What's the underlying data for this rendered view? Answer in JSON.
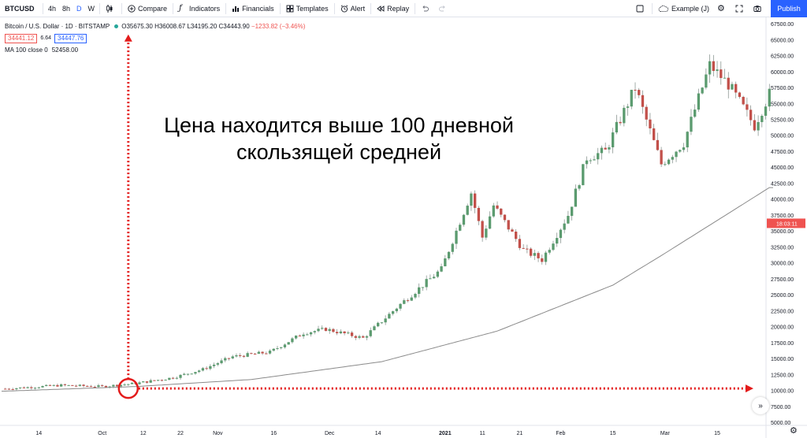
{
  "toolbar": {
    "symbol": "BTCUSD",
    "timeframes": [
      {
        "label": "4h",
        "active": false
      },
      {
        "label": "8h",
        "active": false
      },
      {
        "label": "D",
        "active": true
      },
      {
        "label": "W",
        "active": false
      }
    ],
    "compare": "Compare",
    "indicators": "Indicators",
    "financials": "Financials",
    "templates": "Templates",
    "alert": "Alert",
    "replay": "Replay",
    "layout_name": "Example (J)",
    "publish": "Publish"
  },
  "legend": {
    "title": "Bitcoin / U.S. Dollar · 1D · BITSTAMP",
    "o_label": "O",
    "o": "35675.30",
    "h_label": "H",
    "h": "36008.67",
    "l_label": "L",
    "l": "34195.20",
    "c_label": "C",
    "c": "34443.90",
    "change": "−1233.82 (−3.46%)",
    "bid": "34441.12",
    "spread": "6.64",
    "ask": "34447.76",
    "ma_label": "MA 100 close 0",
    "ma_value": "52458.00"
  },
  "annotation": {
    "line1": "Цена находится выше 100 дневной",
    "line2": "скользящей средней"
  },
  "colors": {
    "up": "#26a69a",
    "down": "#ef5350",
    "up_body": "#5b9b6f",
    "down_body": "#c2504a",
    "ma": "#8a8a8a",
    "arrow": "#e31b1b",
    "price_tag": "#ef5350"
  },
  "icons": {
    "bar_style": "candles-icon",
    "compare": "plus-circle-icon",
    "indicators": "fx-icon",
    "financials": "bar-chart-icon",
    "templates": "grid-icon",
    "alert": "alarm-clock-icon",
    "replay": "rewind-icon",
    "undo": "undo-icon",
    "redo": "redo-icon",
    "layout": "square-icon",
    "cloud": "cloud-icon",
    "settings": "gear-icon",
    "fullscreen": "fullscreen-icon",
    "snapshot": "camera-icon"
  },
  "chart_data": {
    "type": "candlestick",
    "title": "Bitcoin / U.S. Dollar · 1D · BITSTAMP",
    "y_ticks": [
      "67500.00",
      "65000.00",
      "62500.00",
      "60000.00",
      "57500.00",
      "55000.00",
      "52500.00",
      "50000.00",
      "47500.00",
      "45000.00",
      "42500.00",
      "40000.00",
      "37500.00",
      "35000.00",
      "32500.00",
      "30000.00",
      "27500.00",
      "25000.00",
      "22500.00",
      "20000.00",
      "17500.00",
      "15000.00",
      "12500.00",
      "10000.00",
      "7500.00",
      "5000.00"
    ],
    "ylim": [
      5000,
      68500
    ],
    "x_ticks": [
      {
        "label": "14",
        "bold": false
      },
      {
        "label": "Oct",
        "bold": false
      },
      {
        "label": "12",
        "bold": false
      },
      {
        "label": "22",
        "bold": false
      },
      {
        "label": "Nov",
        "bold": false
      },
      {
        "label": "16",
        "bold": false
      },
      {
        "label": "Dec",
        "bold": false
      },
      {
        "label": "14",
        "bold": false
      },
      {
        "label": "2021",
        "bold": true
      },
      {
        "label": "11",
        "bold": false
      },
      {
        "label": "21",
        "bold": false
      },
      {
        "label": "Feb",
        "bold": false
      },
      {
        "label": "15",
        "bold": false
      },
      {
        "label": "Mar",
        "bold": false
      },
      {
        "label": "15",
        "bold": false
      }
    ],
    "last_price_tag": {
      "label": "18:03:11",
      "value": 36200
    },
    "close_anchors": [
      [
        "2020-09-05",
        10250
      ],
      [
        "2020-09-20",
        10800
      ],
      [
        "2020-10-01",
        10600
      ],
      [
        "2020-10-10",
        11100
      ],
      [
        "2020-10-20",
        12000
      ],
      [
        "2020-10-28",
        13300
      ],
      [
        "2020-11-05",
        15300
      ],
      [
        "2020-11-15",
        16000
      ],
      [
        "2020-11-24",
        19000
      ],
      [
        "2020-11-30",
        19600
      ],
      [
        "2020-12-10",
        18200
      ],
      [
        "2020-12-20",
        23500
      ],
      [
        "2020-12-31",
        29000
      ],
      [
        "2021-01-08",
        41000
      ],
      [
        "2021-01-11",
        34000
      ],
      [
        "2021-01-14",
        39000
      ],
      [
        "2021-01-22",
        32000
      ],
      [
        "2021-01-27",
        30500
      ],
      [
        "2021-02-03",
        37500
      ],
      [
        "2021-02-08",
        46500
      ],
      [
        "2021-02-13",
        47500
      ],
      [
        "2021-02-21",
        57500
      ],
      [
        "2021-02-28",
        45500
      ],
      [
        "2021-03-06",
        48800
      ],
      [
        "2021-03-13",
        61000
      ],
      [
        "2021-03-18",
        58000
      ],
      [
        "2021-03-25",
        51500
      ],
      [
        "2021-03-29",
        56500
      ]
    ],
    "ma_anchors": [
      [
        "2020-09-01",
        9800
      ],
      [
        "2020-10-10",
        10600
      ],
      [
        "2020-11-10",
        11700
      ],
      [
        "2020-12-15",
        14500
      ],
      [
        "2021-01-15",
        19300
      ],
      [
        "2021-02-15",
        26500
      ],
      [
        "2021-03-01",
        31500
      ],
      [
        "2021-03-29",
        41800
      ]
    ],
    "ma_label": "MA 100 close 0",
    "annotations": [
      "vertical-arrow-up",
      "horizontal-arrow-right",
      "circle-crossover"
    ]
  }
}
